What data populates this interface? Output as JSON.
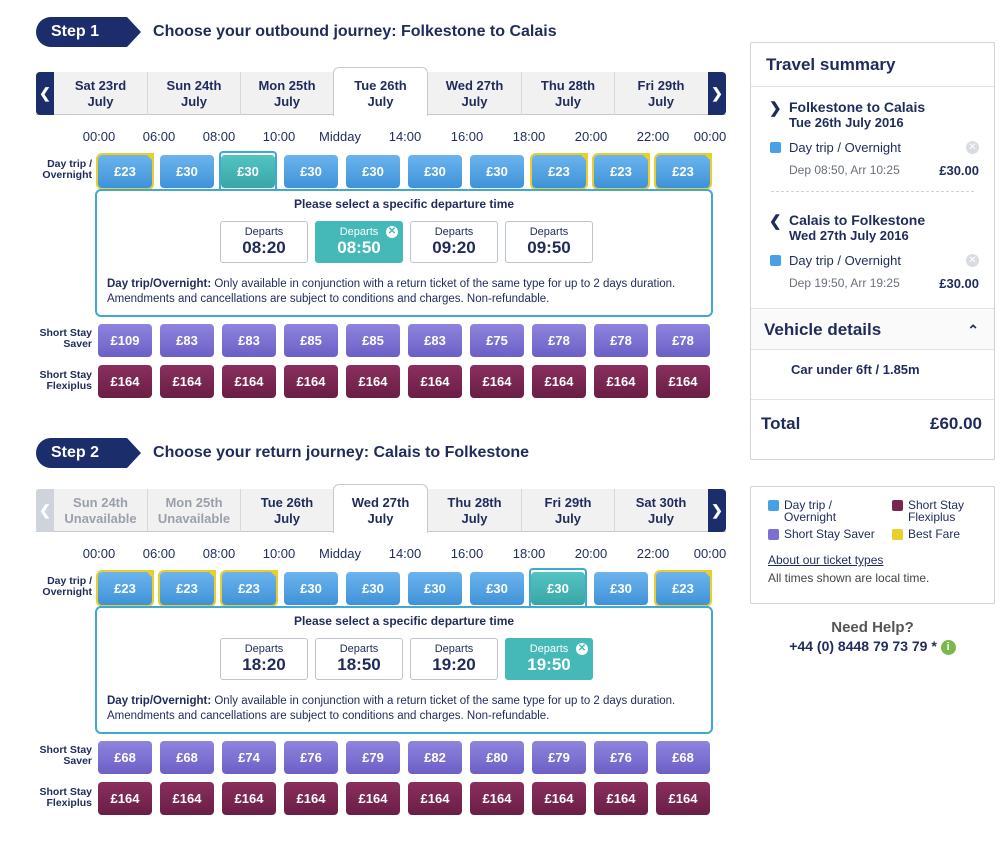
{
  "times": [
    "00:00",
    "06:00",
    "08:00",
    "10:00",
    "Midday",
    "14:00",
    "16:00",
    "18:00",
    "20:00",
    "22:00",
    "00:00"
  ],
  "labels": {
    "day_trip": "Day trip / Overnight",
    "saver": "Short Stay Saver",
    "flexi": "Short Stay Flexiplus"
  },
  "step1": {
    "badge": "Step 1",
    "title": "Choose your outbound journey: Folkestone to Calais",
    "dates": [
      {
        "d": "Sat 23rd",
        "m": "July"
      },
      {
        "d": "Sun 24th",
        "m": "July"
      },
      {
        "d": "Mon 25th",
        "m": "July"
      },
      {
        "d": "Tue 26th",
        "m": "July"
      },
      {
        "d": "Wed 27th",
        "m": "July"
      },
      {
        "d": "Thu 28th",
        "m": "July"
      },
      {
        "d": "Fri 29th",
        "m": "July"
      }
    ],
    "day_fares": [
      "£23",
      "£30",
      "£30",
      "£30",
      "£30",
      "£30",
      "£30",
      "£23",
      "£23",
      "£23"
    ],
    "saver_fares": [
      "£109",
      "£83",
      "£83",
      "£85",
      "£85",
      "£83",
      "£75",
      "£78",
      "£78",
      "£78"
    ],
    "flexi_fares": [
      "£164",
      "£164",
      "£164",
      "£164",
      "£164",
      "£164",
      "£164",
      "£164",
      "£164",
      "£164"
    ],
    "departures": {
      "heading": "Please select a specific departure time",
      "label": "Departs",
      "times": [
        "08:20",
        "08:50",
        "09:20",
        "09:50"
      ]
    },
    "note_bold": "Day trip/Overnight:",
    "note": " Only available in conjunction with a return ticket of the same type for up to 2 days duration. Amendments and cancellations are subject to conditions and charges. Non-refundable."
  },
  "step2": {
    "badge": "Step 2",
    "title": "Choose your return journey: Calais to Folkestone",
    "dates": [
      {
        "d": "Sun 24th",
        "m": "Unavailable"
      },
      {
        "d": "Mon 25th",
        "m": "Unavailable"
      },
      {
        "d": "Tue 26th",
        "m": "July"
      },
      {
        "d": "Wed 27th",
        "m": "July"
      },
      {
        "d": "Thu 28th",
        "m": "July"
      },
      {
        "d": "Fri 29th",
        "m": "July"
      },
      {
        "d": "Sat 30th",
        "m": "July"
      }
    ],
    "day_fares": [
      "£23",
      "£23",
      "£23",
      "£30",
      "£30",
      "£30",
      "£30",
      "£30",
      "£30",
      "£23"
    ],
    "saver_fares": [
      "£68",
      "£68",
      "£74",
      "£76",
      "£79",
      "£82",
      "£80",
      "£79",
      "£76",
      "£68"
    ],
    "flexi_fares": [
      "£164",
      "£164",
      "£164",
      "£164",
      "£164",
      "£164",
      "£164",
      "£164",
      "£164",
      "£164"
    ],
    "departures": {
      "heading": "Please select a specific departure time",
      "label": "Departs",
      "times": [
        "18:20",
        "18:50",
        "19:20",
        "19:50"
      ]
    },
    "note_bold": "Day trip/Overnight:",
    "note": " Only available in conjunction with a return ticket of the same type for up to 2 days duration. Amendments and cancellations are subject to conditions and charges. Non-refundable."
  },
  "summary": {
    "title": "Travel summary",
    "legs": [
      {
        "route": "Folkestone to Calais",
        "date": "Tue 26th July 2016",
        "type": "Day trip / Overnight",
        "times": "Dep 08:50, Arr 10:25",
        "price": "£30.00"
      },
      {
        "route": "Calais to Folkestone",
        "date": "Wed 27th July 2016",
        "type": "Day trip / Overnight",
        "times": "Dep 19:50, Arr 19:25",
        "price": "£30.00"
      }
    ],
    "vehicle_title": "Vehicle details",
    "vehicle": "Car under 6ft / 1.85m",
    "total_label": "Total",
    "total": "£60.00"
  },
  "legend": {
    "day_trip": "Day trip / Overnight",
    "flexi": "Short Stay Flexiplus",
    "saver": "Short Stay Saver",
    "best": "Best Fare",
    "link": "About our ticket types",
    "note": "All times shown are local time."
  },
  "help": {
    "title": "Need Help?",
    "phone": "+44 (0) 8448 79 73 79 *"
  },
  "colors": {
    "navy": "#1b2d6b",
    "day_trip": "#4aa0e4",
    "selected": "#45b9b8",
    "saver": "#7b6fd1",
    "flexi": "#7a2452",
    "best": "#e8cf2a"
  }
}
